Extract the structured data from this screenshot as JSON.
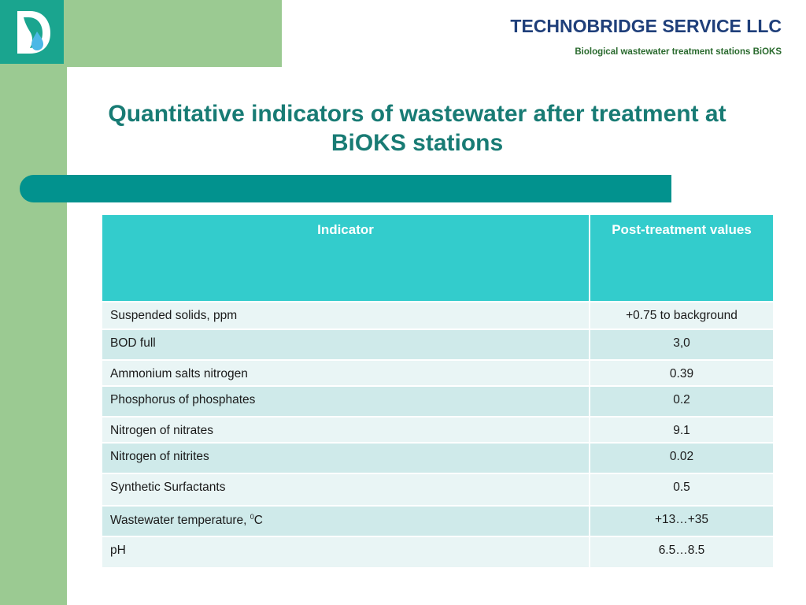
{
  "header": {
    "company": "TECHNOBRIDGE SERVICE LLC",
    "subtitle": "Biological wastewater treatment stations BiOKS"
  },
  "slide": {
    "title": "Quantitative indicators of wastewater after treatment at BiOKS stations"
  },
  "table": {
    "columns": [
      "Indicator",
      "Post-treatment values"
    ],
    "rows": [
      {
        "indicator": "Suspended solids, ppm",
        "value": "+0.75 to background"
      },
      {
        "indicator": "BOD full",
        "value": "3,0"
      },
      {
        "indicator": "Ammonium salts nitrogen",
        "value": "0.39"
      },
      {
        "indicator": "Phosphorus of phosphates",
        "value": "0.2"
      },
      {
        "indicator": "Nitrogen of nitrates",
        "value": "9.1"
      },
      {
        "indicator": "Nitrogen of nitrites",
        "value": "0.02"
      },
      {
        "indicator": "Synthetic Surfactants",
        "value": "0.5"
      },
      {
        "indicator_prefix": "Wastewater temperature, ",
        "indicator_sup": "0",
        "indicator_suffix": "C",
        "value": "+13…+35"
      },
      {
        "indicator": "pH",
        "value": "6.5…8.5"
      }
    ]
  },
  "colors": {
    "background_green": "#9bca92",
    "logo_teal": "#1aa58f",
    "title_teal": "#187b74",
    "bar_teal": "#02928e",
    "table_header": "#33cccc",
    "company_blue": "#1f3f7a"
  },
  "logo": {
    "icon": "company-logo-icon"
  }
}
